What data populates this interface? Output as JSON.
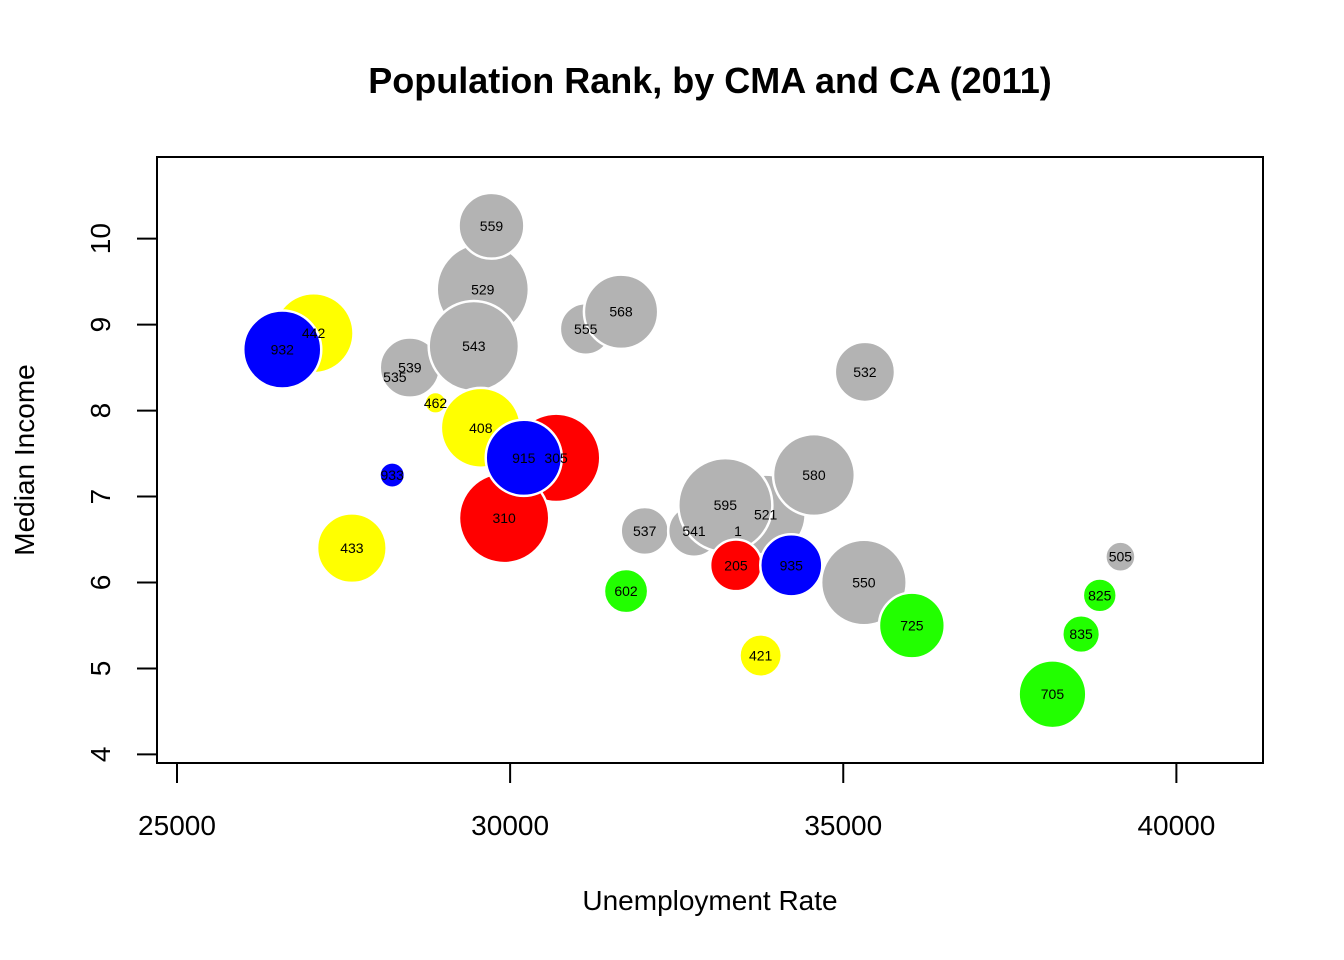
{
  "chart_data": {
    "type": "scatter",
    "subtype": "bubble",
    "title": "Population Rank, by CMA and CA (2011)",
    "xlabel": "Unemployment Rate",
    "ylabel": "Median Income",
    "xlim": [
      24700,
      41300
    ],
    "ylim": [
      3.9,
      10.95
    ],
    "xticks": [
      25000,
      30000,
      35000,
      40000
    ],
    "yticks": [
      4,
      5,
      6,
      7,
      8,
      9,
      10
    ],
    "grid": false,
    "legend": "none",
    "colors": {
      "blue": "#0000ff",
      "yellow": "#ffff00",
      "red": "#ff0000",
      "gray": "#b3b3b3",
      "green": "#22ff00"
    },
    "points": [
      {
        "label": "442",
        "x": 27050,
        "y": 8.9,
        "size": 0.85,
        "color": "yellow"
      },
      {
        "label": "932",
        "x": 26580,
        "y": 8.71,
        "size": 0.83,
        "color": "blue"
      },
      {
        "label": "529",
        "x": 29590,
        "y": 9.41,
        "size": 0.98,
        "color": "gray"
      },
      {
        "label": "559",
        "x": 29720,
        "y": 10.15,
        "size": 0.7,
        "color": "gray"
      },
      {
        "label": "535",
        "x": 28270,
        "y": 8.39,
        "size": 0.2,
        "color": "gray"
      },
      {
        "label": "539",
        "x": 28495,
        "y": 8.5,
        "size": 0.64,
        "color": "gray"
      },
      {
        "label": "543",
        "x": 29455,
        "y": 8.75,
        "size": 0.96,
        "color": "gray"
      },
      {
        "label": "462",
        "x": 28880,
        "y": 8.09,
        "size": 0.23,
        "color": "yellow"
      },
      {
        "label": "408",
        "x": 29560,
        "y": 7.8,
        "size": 0.85,
        "color": "yellow"
      },
      {
        "label": "933",
        "x": 28230,
        "y": 7.25,
        "size": 0.27,
        "color": "blue"
      },
      {
        "label": "305",
        "x": 30690,
        "y": 7.45,
        "size": 0.94,
        "color": "red"
      },
      {
        "label": "310",
        "x": 29910,
        "y": 6.75,
        "size": 0.96,
        "color": "red"
      },
      {
        "label": "915",
        "x": 30205,
        "y": 7.45,
        "size": 0.81,
        "color": "blue"
      },
      {
        "label": "433",
        "x": 27625,
        "y": 6.4,
        "size": 0.74,
        "color": "yellow"
      },
      {
        "label": "555",
        "x": 31135,
        "y": 8.95,
        "size": 0.55,
        "color": "gray"
      },
      {
        "label": "568",
        "x": 31665,
        "y": 9.15,
        "size": 0.79,
        "color": "gray"
      },
      {
        "label": "532",
        "x": 35325,
        "y": 8.45,
        "size": 0.64,
        "color": "gray"
      },
      {
        "label": "537",
        "x": 32020,
        "y": 6.6,
        "size": 0.51,
        "color": "gray"
      },
      {
        "label": "541",
        "x": 32760,
        "y": 6.6,
        "size": 0.55,
        "color": "gray"
      },
      {
        "label": "521",
        "x": 33835,
        "y": 6.79,
        "size": 0.85,
        "color": "gray"
      },
      {
        "label": "1",
        "x": 33420,
        "y": 6.6,
        "size": 0.0,
        "color": "gray"
      },
      {
        "label": "595",
        "x": 33230,
        "y": 6.9,
        "size": 1.0,
        "color": "gray"
      },
      {
        "label": "580",
        "x": 34560,
        "y": 7.25,
        "size": 0.87,
        "color": "gray"
      },
      {
        "label": "205",
        "x": 33390,
        "y": 6.2,
        "size": 0.55,
        "color": "red"
      },
      {
        "label": "935",
        "x": 34220,
        "y": 6.2,
        "size": 0.66,
        "color": "blue"
      },
      {
        "label": "550",
        "x": 35310,
        "y": 6.0,
        "size": 0.91,
        "color": "gray"
      },
      {
        "label": "602",
        "x": 31740,
        "y": 5.9,
        "size": 0.47,
        "color": "green"
      },
      {
        "label": "421",
        "x": 33760,
        "y": 5.15,
        "size": 0.45,
        "color": "yellow"
      },
      {
        "label": "725",
        "x": 36030,
        "y": 5.5,
        "size": 0.7,
        "color": "green"
      },
      {
        "label": "705",
        "x": 38140,
        "y": 4.7,
        "size": 0.72,
        "color": "green"
      },
      {
        "label": "835",
        "x": 38570,
        "y": 5.4,
        "size": 0.4,
        "color": "green"
      },
      {
        "label": "825",
        "x": 38850,
        "y": 5.85,
        "size": 0.36,
        "color": "green"
      },
      {
        "label": "505",
        "x": 39160,
        "y": 6.3,
        "size": 0.32,
        "color": "gray"
      }
    ]
  }
}
